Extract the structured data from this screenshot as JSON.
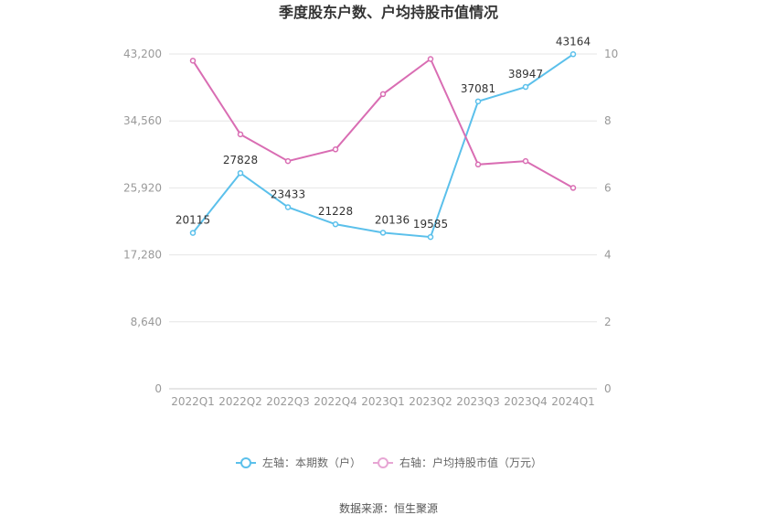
{
  "chart_data": {
    "type": "line",
    "title": "季度股东户数、户均持股市值情况",
    "categories": [
      "2022Q1",
      "2022Q2",
      "2022Q3",
      "2022Q4",
      "2023Q1",
      "2023Q2",
      "2023Q3",
      "2023Q4",
      "2024Q1"
    ],
    "left_axis": {
      "ticks": [
        "0",
        "8,640",
        "17,280",
        "25,920",
        "34,560",
        "43,200"
      ],
      "ylim": [
        0,
        43200
      ]
    },
    "right_axis": {
      "ticks": [
        "0",
        "2",
        "4",
        "6",
        "8",
        "10"
      ],
      "ylim": [
        0,
        10
      ]
    },
    "series": [
      {
        "name": "左轴：本期数（户）",
        "axis": "left",
        "color": "#5bc0eb",
        "values": [
          20115,
          27828,
          23433,
          21228,
          20136,
          19585,
          37081,
          38947,
          43164
        ],
        "labels": [
          "20115",
          "27828",
          "23433",
          "21228",
          "20136",
          "19585",
          "37081",
          "38947",
          "43164"
        ]
      },
      {
        "name": "右轴：户均持股市值（万元）",
        "axis": "right",
        "color": "#d96db3",
        "legend_color": "#e7a6d4",
        "values": [
          9.8,
          7.6,
          6.8,
          7.15,
          8.8,
          9.85,
          6.7,
          6.8,
          6.0
        ]
      }
    ],
    "grid": true,
    "legend_position": "bottom"
  },
  "source_text": "数据来源：恒生聚源"
}
